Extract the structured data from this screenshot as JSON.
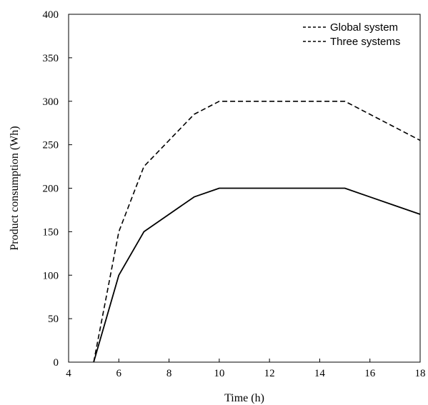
{
  "chart_data": {
    "type": "line",
    "xlabel": "Time (h)",
    "ylabel": "Product consumption (Wh)",
    "xlim": [
      4,
      18
    ],
    "ylim": [
      0,
      400
    ],
    "xticks": [
      "4",
      "6",
      "8",
      "10",
      "12",
      "14",
      "16",
      "18"
    ],
    "yticks": [
      "0",
      "50",
      "100",
      "150",
      "200",
      "250",
      "300",
      "350",
      "400"
    ],
    "legend_position": "top-right",
    "grid": false,
    "series": [
      {
        "name": "Global system",
        "style": "dashed",
        "color": "#000000",
        "x": [
          5,
          6,
          7,
          8,
          9,
          10,
          11,
          12,
          13,
          14,
          15,
          16,
          17,
          18
        ],
        "y": [
          0,
          150,
          225,
          255,
          285,
          300,
          300,
          300,
          300,
          300,
          300,
          285,
          270,
          255
        ]
      },
      {
        "name": "Three systems",
        "style": "dashed",
        "color": "#000000",
        "x": [
          5,
          6,
          7,
          8,
          9,
          10,
          11,
          12,
          13,
          14,
          15,
          16,
          17,
          18
        ],
        "y": [
          0,
          100,
          150,
          170,
          190,
          200,
          200,
          200,
          200,
          200,
          200,
          190,
          180,
          170
        ]
      }
    ]
  }
}
